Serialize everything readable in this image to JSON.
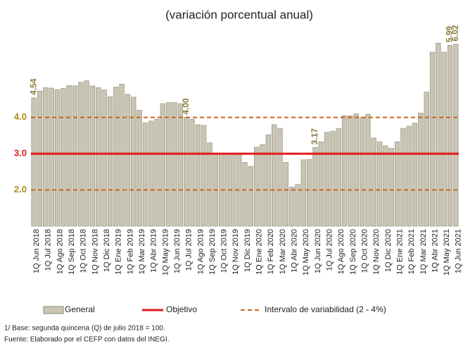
{
  "chart_data": {
    "type": "bar",
    "subtitle": "(variación porcentual anual)",
    "categories": [
      "1Q Jun 2018",
      null,
      "1Q Jul 2018",
      null,
      "1Q Ago 2018",
      null,
      "1Q Sep 2018",
      null,
      "1Q Oct 2018",
      null,
      "1Q Nov 2018",
      null,
      "1Q Dic 2018",
      null,
      "1Q Ene 2019",
      null,
      "1Q Feb 2019",
      null,
      "1Q Mar 2019",
      null,
      "1Q Abr 2019",
      null,
      "1Q May 2019",
      null,
      "1Q Jun 2019",
      null,
      "1Q Jul 2019",
      null,
      "1Q Ago 2019",
      null,
      "1Q Sep 2019",
      null,
      "1Q Oct 2019",
      null,
      "1Q Nov 2019",
      null,
      "1Q Dic 2019",
      null,
      "1Q Ene 2020",
      null,
      "1Q Feb 2020",
      null,
      "1Q Mar 2020",
      null,
      "1Q Abr 2020",
      null,
      "1Q May 2020",
      null,
      "1Q Jun 2020",
      null,
      "1Q Jul 2020",
      null,
      "1Q Ago 2020",
      null,
      "1Q Sep 2020",
      null,
      "1Q Oct 2020",
      null,
      "1Q Nov 2020",
      null,
      "1Q Dic 2020",
      null,
      "1Q Ene 2021",
      null,
      "1Q Feb 2021",
      null,
      "1Q Mar 2021",
      null,
      "1Q Abr 2021",
      null,
      "1Q May 2021",
      null,
      "1Q Jun 2021"
    ],
    "series": [
      {
        "name": "General",
        "color": "#c9c5b2",
        "values": [
          4.54,
          4.73,
          4.82,
          4.81,
          4.77,
          4.8,
          4.88,
          4.87,
          4.97,
          5.01,
          4.87,
          4.82,
          4.76,
          4.57,
          4.84,
          4.92,
          4.64,
          4.56,
          4.2,
          3.85,
          3.9,
          3.95,
          4.38,
          4.41,
          4.41,
          4.38,
          4.0,
          3.95,
          3.8,
          3.78,
          3.3,
          2.98,
          2.98,
          3.0,
          3.0,
          3.02,
          2.76,
          2.65,
          3.18,
          3.25,
          3.52,
          3.8,
          3.7,
          2.76,
          2.08,
          2.15,
          2.83,
          2.84,
          3.17,
          3.33,
          3.59,
          3.62,
          3.69,
          4.05,
          4.05,
          4.1,
          4.0,
          4.09,
          3.43,
          3.33,
          3.22,
          3.15,
          3.33,
          3.7,
          3.76,
          3.84,
          4.12,
          4.7,
          5.8,
          6.05,
          5.8,
          5.99,
          6.02
        ],
        "value_labels": [
          "4.54",
          null,
          null,
          null,
          null,
          null,
          null,
          null,
          null,
          null,
          null,
          null,
          null,
          null,
          null,
          null,
          null,
          null,
          null,
          null,
          null,
          null,
          null,
          null,
          null,
          null,
          "4.00",
          null,
          null,
          null,
          null,
          null,
          null,
          null,
          null,
          null,
          null,
          null,
          null,
          null,
          null,
          null,
          null,
          null,
          null,
          null,
          null,
          null,
          "3.17",
          null,
          null,
          null,
          null,
          null,
          null,
          null,
          null,
          null,
          null,
          null,
          null,
          null,
          null,
          null,
          null,
          null,
          null,
          null,
          null,
          null,
          null,
          "5.99",
          "6.02"
        ]
      }
    ],
    "reference_lines": [
      {
        "name": "Objetivo",
        "color": "#e3191c",
        "style": "solid",
        "values": [
          3
        ]
      },
      {
        "name": "Intervalo de variabilidad (2 - 4%)",
        "color": "#c8641e",
        "style": "dashed",
        "values": [
          2,
          4
        ]
      }
    ],
    "ylim": [
      1,
      6.5
    ],
    "yticks": [
      {
        "value": 2,
        "label": "2.0"
      },
      {
        "value": 3,
        "label": "3.0"
      },
      {
        "value": 4,
        "label": "4.0"
      }
    ],
    "legend": "bottom",
    "notes": [
      "1/ Base: segunda quincena (Q) de julio 2018 = 100.",
      "Fuente: Elaborado por el CEFP con  datos del INEGI."
    ]
  }
}
